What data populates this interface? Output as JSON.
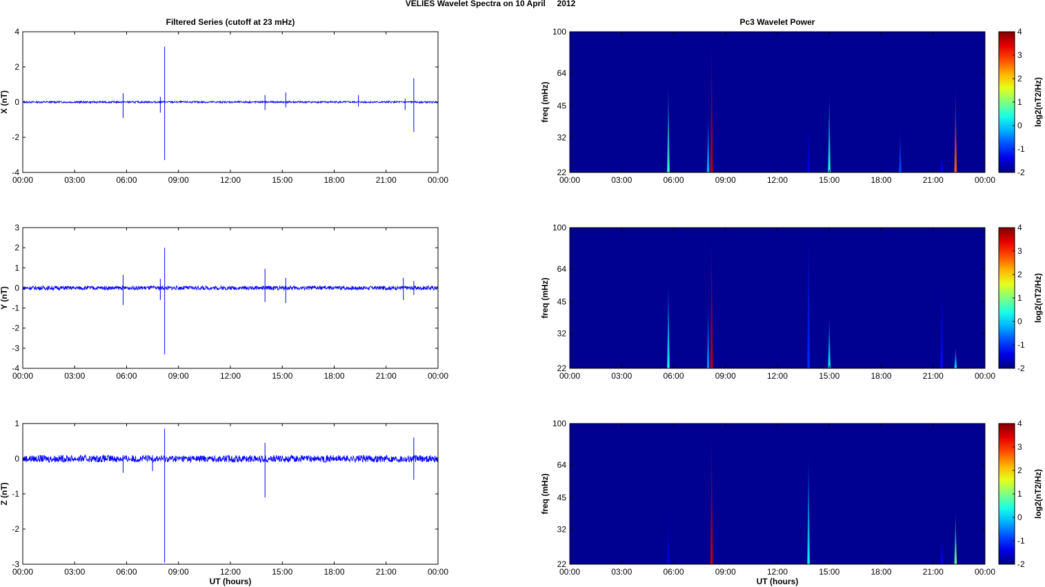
{
  "figure": {
    "title": "VELIES Wavelet Spectra on 10 April     2012"
  },
  "colors": {
    "trace": "#0000ff",
    "axes": "#000000",
    "background_field": "#00008f"
  },
  "chart_data": [
    {
      "id": "ts-x",
      "type": "line",
      "title": "Filtered Series (cutoff at 23 mHz)",
      "xlabel": "",
      "ylabel": "X (nT)",
      "x_ticklabels": [
        "00:00",
        "03:00",
        "06:00",
        "09:00",
        "12:00",
        "15:00",
        "18:00",
        "21:00",
        "00:00"
      ],
      "xlim": [
        0,
        24
      ],
      "ylim": [
        -4,
        4
      ],
      "yticks": [
        -4,
        -2,
        0,
        2,
        4
      ],
      "noise_amplitude": 0.05,
      "spikes": [
        {
          "x": 5.8,
          "hi": 0.5,
          "lo": -0.9
        },
        {
          "x": 7.95,
          "hi": 0.3,
          "lo": -0.6
        },
        {
          "x": 8.2,
          "hi": 3.15,
          "lo": -3.3
        },
        {
          "x": 14.0,
          "hi": 0.4,
          "lo": -0.45
        },
        {
          "x": 15.2,
          "hi": 0.55,
          "lo": -0.3
        },
        {
          "x": 19.4,
          "hi": 0.4,
          "lo": -0.25
        },
        {
          "x": 22.1,
          "hi": 0.2,
          "lo": -0.45
        },
        {
          "x": 22.6,
          "hi": 1.35,
          "lo": -1.7
        }
      ]
    },
    {
      "id": "ts-y",
      "type": "line",
      "title": "",
      "xlabel": "",
      "ylabel": "Y (nT)",
      "x_ticklabels": [
        "00:00",
        "03:00",
        "06:00",
        "09:00",
        "12:00",
        "15:00",
        "18:00",
        "21:00",
        "00:00"
      ],
      "xlim": [
        0,
        24
      ],
      "ylim": [
        -4,
        3
      ],
      "yticks": [
        -4,
        -3,
        -2,
        -1,
        0,
        1,
        2,
        3
      ],
      "noise_amplitude": 0.1,
      "spikes": [
        {
          "x": 5.8,
          "hi": 0.65,
          "lo": -0.85
        },
        {
          "x": 7.95,
          "hi": 0.45,
          "lo": -0.6
        },
        {
          "x": 8.2,
          "hi": 2.0,
          "lo": -3.3
        },
        {
          "x": 14.0,
          "hi": 0.95,
          "lo": -0.7
        },
        {
          "x": 15.2,
          "hi": 0.5,
          "lo": -0.75
        },
        {
          "x": 22.0,
          "hi": 0.5,
          "lo": -0.6
        },
        {
          "x": 22.6,
          "hi": 0.35,
          "lo": -0.35
        }
      ]
    },
    {
      "id": "ts-z",
      "type": "line",
      "title": "",
      "xlabel": "UT (hours)",
      "ylabel": "Z (nT)",
      "x_ticklabels": [
        "00:00",
        "03:00",
        "06:00",
        "09:00",
        "12:00",
        "15:00",
        "18:00",
        "21:00",
        "00:00"
      ],
      "xlim": [
        0,
        24
      ],
      "ylim": [
        -3,
        1
      ],
      "yticks": [
        -3,
        -2,
        -1,
        0,
        1
      ],
      "noise_amplitude": 0.1,
      "spikes": [
        {
          "x": 5.8,
          "hi": 0.1,
          "lo": -0.4
        },
        {
          "x": 7.5,
          "hi": 0.1,
          "lo": -0.35
        },
        {
          "x": 8.2,
          "hi": 0.85,
          "lo": -2.95
        },
        {
          "x": 14.0,
          "hi": 0.45,
          "lo": -1.1
        },
        {
          "x": 22.6,
          "hi": 0.6,
          "lo": -0.6
        }
      ]
    },
    {
      "id": "wp-x",
      "type": "heatmap",
      "title": "Pc3 Wavelet Power",
      "xlabel": "",
      "ylabel": "freq (mHz)",
      "colorbar_label": "log2(nT2/Hz)",
      "x_ticklabels": [
        "00:00",
        "03:00",
        "06:00",
        "09:00",
        "12:00",
        "15:00",
        "18:00",
        "21:00",
        "00:00"
      ],
      "xlim": [
        0,
        24
      ],
      "y_scale": "log",
      "ylim": [
        22,
        100
      ],
      "yticks": [
        22,
        32,
        45,
        64,
        100
      ],
      "clim": [
        -2,
        4
      ],
      "cticks": [
        -2,
        -1,
        0,
        1,
        2,
        3,
        4
      ],
      "background_value": -1.9,
      "features": [
        {
          "x": 5.7,
          "top_freq": 60,
          "peak": 0.6
        },
        {
          "x": 8.0,
          "top_freq": 44,
          "peak": -0.2
        },
        {
          "x": 8.2,
          "top_freq": 100,
          "peak": 3.6
        },
        {
          "x": 13.8,
          "top_freq": 38,
          "peak": -1.4
        },
        {
          "x": 15.0,
          "top_freq": 55,
          "peak": 0.4
        },
        {
          "x": 19.1,
          "top_freq": 36,
          "peak": -0.8
        },
        {
          "x": 21.5,
          "top_freq": 28,
          "peak": -1.3
        },
        {
          "x": 22.3,
          "top_freq": 58,
          "peak": 2.7
        }
      ]
    },
    {
      "id": "wp-y",
      "type": "heatmap",
      "title": "",
      "xlabel": "",
      "ylabel": "freq (mHz)",
      "colorbar_label": "log2(nT2/Hz)",
      "x_ticklabels": [
        "00:00",
        "03:00",
        "06:00",
        "09:00",
        "12:00",
        "15:00",
        "18:00",
        "21:00",
        "00:00"
      ],
      "xlim": [
        0,
        24
      ],
      "y_scale": "log",
      "ylim": [
        22,
        100
      ],
      "yticks": [
        22,
        32,
        45,
        64,
        100
      ],
      "clim": [
        -2,
        4
      ],
      "cticks": [
        -2,
        -1,
        0,
        1,
        2,
        3,
        4
      ],
      "background_value": -1.9,
      "features": [
        {
          "x": 5.7,
          "top_freq": 58,
          "peak": 0.3
        },
        {
          "x": 8.0,
          "top_freq": 48,
          "peak": -0.4
        },
        {
          "x": 8.2,
          "top_freq": 100,
          "peak": 3.6
        },
        {
          "x": 13.8,
          "top_freq": 100,
          "peak": -1.0
        },
        {
          "x": 15.0,
          "top_freq": 40,
          "peak": 0.2
        },
        {
          "x": 21.5,
          "top_freq": 58,
          "peak": -1.2
        },
        {
          "x": 22.3,
          "top_freq": 28,
          "peak": 0.1
        }
      ]
    },
    {
      "id": "wp-z",
      "type": "heatmap",
      "title": "",
      "xlabel": "UT (hours)",
      "ylabel": "freq (mHz)",
      "colorbar_label": "log2(nT2/Hz)",
      "x_ticklabels": [
        "00:00",
        "03:00",
        "06:00",
        "09:00",
        "12:00",
        "15:00",
        "18:00",
        "21:00",
        "00:00"
      ],
      "xlim": [
        0,
        24
      ],
      "y_scale": "log",
      "ylim": [
        22,
        100
      ],
      "yticks": [
        22,
        32,
        45,
        64,
        100
      ],
      "clim": [
        -2,
        4
      ],
      "cticks": [
        -2,
        -1,
        0,
        1,
        2,
        3,
        4
      ],
      "background_value": -1.9,
      "features": [
        {
          "x": 5.7,
          "top_freq": 38,
          "peak": -1.4
        },
        {
          "x": 8.2,
          "top_freq": 100,
          "peak": 3.6
        },
        {
          "x": 13.8,
          "top_freq": 75,
          "peak": 0.2
        },
        {
          "x": 21.5,
          "top_freq": 30,
          "peak": -1.3
        },
        {
          "x": 22.3,
          "top_freq": 40,
          "peak": 0.9
        }
      ]
    }
  ]
}
